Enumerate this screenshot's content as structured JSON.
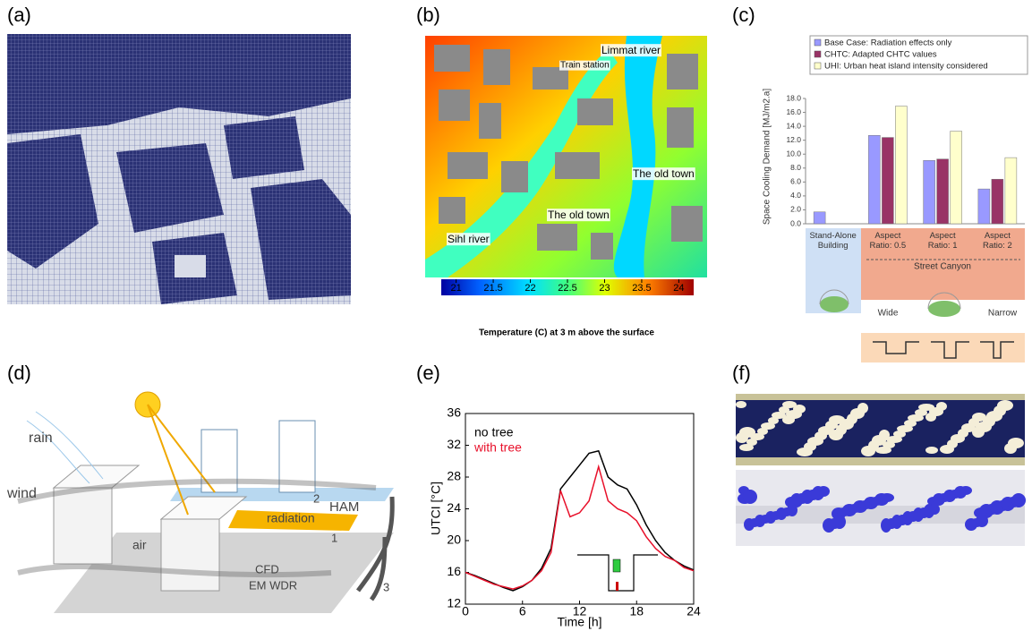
{
  "panels": {
    "labels": [
      "(a)",
      "(b)",
      "(c)",
      "(d)",
      "(e)",
      "(f)"
    ]
  },
  "map_b": {
    "annotations": [
      "Limmat river",
      "Train station",
      "The old town",
      "The old town",
      "Sihl river"
    ],
    "colorbar": {
      "clim": [
        20.8,
        24.2
      ],
      "ticks": [
        21,
        21.5,
        22,
        22.5,
        23,
        23.5,
        24
      ],
      "label": "Temperature (C) at 3 m above the surface"
    }
  },
  "diagram_d": {
    "labels": [
      "rain",
      "wind",
      "air",
      "HAM",
      "radiation",
      "CFD",
      "EM WDR",
      "1",
      "2",
      "3"
    ]
  },
  "chart_data": [
    {
      "type": "bar",
      "y_label": "Space Cooling Demand [MJ/m2.a]",
      "categories": [
        "Stand-Alone Building",
        "Aspect Ratio: 0.5",
        "Aspect Ratio: 1",
        "Aspect Ratio: 2"
      ],
      "series": [
        {
          "name": "Base Case: Radiation effects only",
          "color": "#9999ff",
          "values": [
            1.7,
            12.7,
            9.1,
            5.0
          ]
        },
        {
          "name": "CHTC: Adapted CHTC values",
          "color": "#993366",
          "values": [
            null,
            12.4,
            9.3,
            6.4
          ]
        },
        {
          "name": "UHI: Urban heat island intensity considered",
          "color": "#ffffcc",
          "values": [
            null,
            16.9,
            13.3,
            9.5
          ]
        }
      ],
      "ylim": [
        0,
        18
      ],
      "yticks": [
        {
          "value": 0,
          "label": "0.0"
        },
        {
          "value": 2,
          "label": "2.0"
        },
        {
          "value": 4,
          "label": "4.0"
        },
        {
          "value": 6,
          "label": "6.0"
        },
        {
          "value": 8,
          "label": "8.0"
        },
        {
          "value": 10,
          "label": "10.0"
        },
        {
          "value": 12,
          "label": "12.0"
        },
        {
          "value": 14,
          "label": "14.0"
        },
        {
          "value": 16,
          "label": "16.0"
        },
        {
          "value": 18,
          "label": "18.0"
        }
      ],
      "annotations": [
        "Street Canyon",
        "Wide",
        "Narrow"
      ],
      "legend": "top"
    },
    {
      "type": "line",
      "x_label": "Time [h]",
      "y_label": "UTCI [°C]",
      "x": [
        0,
        1,
        2,
        3,
        4,
        5,
        6,
        7,
        8,
        9,
        10,
        11,
        12,
        13,
        14,
        15,
        16,
        17,
        18,
        19,
        20,
        21,
        22,
        23,
        24
      ],
      "series": [
        {
          "name": "no tree",
          "color": "#000000",
          "values": [
            16,
            15.6,
            15.1,
            14.6,
            14.1,
            13.7,
            14.2,
            15,
            16.5,
            19,
            26.5,
            28,
            29.5,
            31,
            31.3,
            28,
            27,
            26.5,
            24.5,
            22,
            20,
            18.5,
            17.5,
            16.8,
            16.3
          ]
        },
        {
          "name": "with tree",
          "color": "#e8102a",
          "values": [
            16,
            15.5,
            15,
            14.5,
            14.2,
            13.9,
            14.3,
            15,
            16.2,
            18.5,
            26.3,
            23,
            23.5,
            25,
            29.3,
            25,
            24,
            23.5,
            22.5,
            20.5,
            19,
            18,
            17.5,
            16.6,
            16.2
          ]
        }
      ],
      "xlim": [
        0,
        24
      ],
      "xticks": [
        0,
        6,
        12,
        18,
        24
      ],
      "ylim": [
        12,
        36
      ],
      "yticks": [
        12,
        16,
        20,
        24,
        28,
        32,
        36
      ],
      "legend": "upper left"
    }
  ]
}
